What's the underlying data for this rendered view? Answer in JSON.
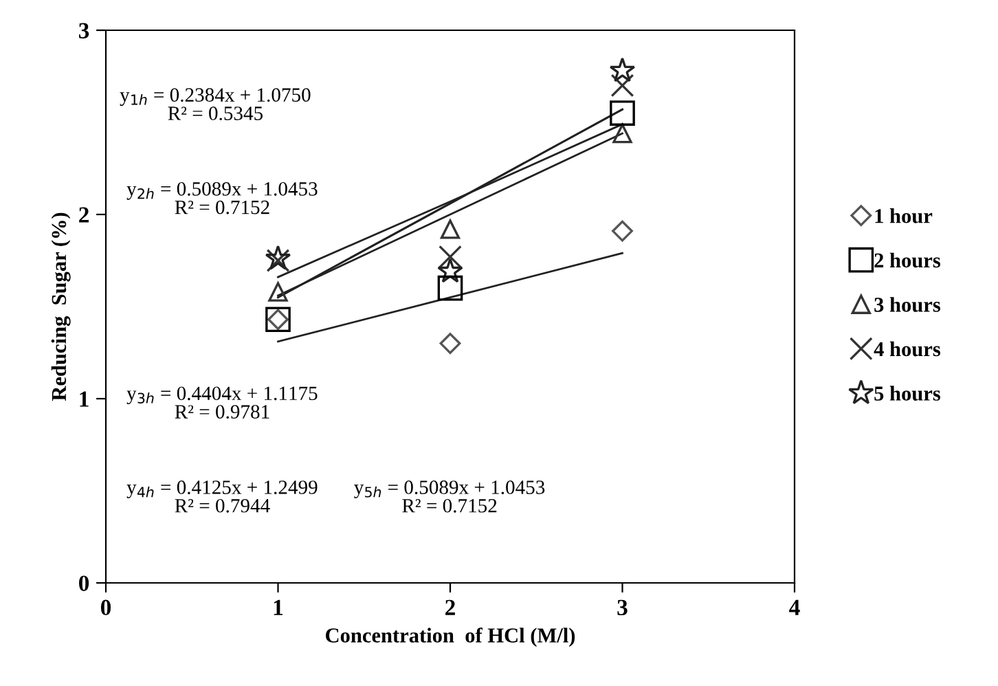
{
  "chart_data": {
    "type": "scatter",
    "xlabel": "Concentration  of HCl (M/l)",
    "ylabel": "Reducing  Sugar (%)",
    "x": [
      1,
      2,
      3
    ],
    "xlim": [
      0,
      4
    ],
    "xticks": [
      0,
      1,
      2,
      3,
      4
    ],
    "ylim": [
      0,
      3
    ],
    "yticks": [
      0,
      1,
      2,
      3
    ],
    "grid": false,
    "legend": "right",
    "series": [
      {
        "name": "1 hour",
        "color": "#555555",
        "marker": "diamond",
        "values": [
          1.43,
          1.3,
          1.91
        ]
      },
      {
        "name": "2 hours",
        "color": "#000000",
        "marker": "square",
        "values": [
          1.43,
          1.6,
          2.55
        ]
      },
      {
        "name": "3 hours",
        "color": "#333333",
        "marker": "triangle",
        "values": [
          1.58,
          1.92,
          2.44
        ]
      },
      {
        "name": "4 hours",
        "color": "#333333",
        "marker": "cross",
        "values": [
          1.75,
          1.77,
          2.7
        ]
      },
      {
        "name": "5 hours",
        "color": "#222222",
        "marker": "star",
        "values": [
          1.76,
          1.69,
          2.78
        ]
      },
      {
        "type": "line",
        "color": "#222222",
        "values": [
          1.31,
          1.55,
          1.79
        ]
      },
      {
        "type": "line",
        "color": "#222222",
        "values": [
          1.55,
          2.06,
          2.57
        ]
      },
      {
        "type": "line",
        "color": "#222222",
        "values": [
          1.56,
          2.0,
          2.44
        ]
      },
      {
        "type": "line",
        "color": "#222222",
        "values": [
          1.66,
          2.07,
          2.49
        ]
      },
      {
        "type": "line",
        "color": "#222222",
        "values": [
          1.55,
          2.06,
          2.57
        ]
      }
    ],
    "annotations": [
      "y$_{1h}$ = 0.2384x + 1.0750\nR² = 0.5345",
      "y$_{2h}$ = 0.5089x + 1.0453\nR² = 0.7152",
      "y$_{3h}$ = 0.4404x + 1.1175\nR² = 0.9781",
      "y$_{4h}$ = 0.4125x + 1.2499\nR² = 0.7944",
      "y$_{5h}$ = 0.5089x + 1.0453\nR² = 0.7152"
    ]
  }
}
